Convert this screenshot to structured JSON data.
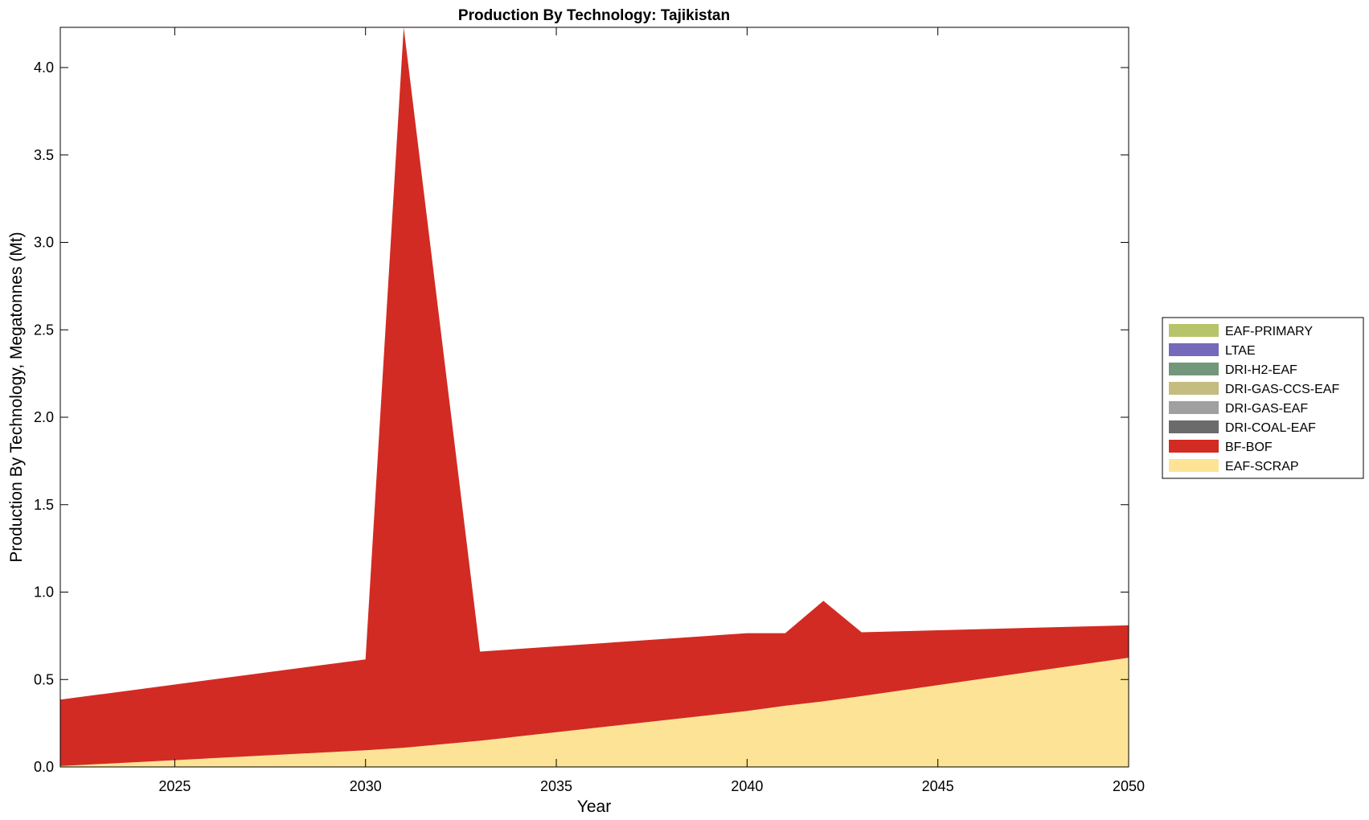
{
  "chart_data": {
    "type": "area",
    "stacked": true,
    "title": "Production By Technology: Tajikistan",
    "xlabel": "Year",
    "ylabel": "Production By Technology, Megatonnes (Mt)",
    "xlim": [
      2022,
      2050
    ],
    "ylim": [
      0,
      4.23
    ],
    "xticks": [
      2025,
      2030,
      2035,
      2040,
      2045,
      2050
    ],
    "yticks": [
      "0.0",
      "0.5",
      "1.0",
      "1.5",
      "2.0",
      "2.5",
      "3.0",
      "3.5",
      "4.0"
    ],
    "grid": false,
    "legend_position": "right",
    "x": [
      2022,
      2030,
      2031,
      2033,
      2040,
      2041,
      2042,
      2043,
      2050
    ],
    "series": [
      {
        "name": "EAF-SCRAP",
        "color": "#fde395",
        "values": [
          0.005,
          0.095,
          0.11,
          0.15,
          0.32,
          0.35,
          0.375,
          0.405,
          0.625
        ]
      },
      {
        "name": "BF-BOF",
        "color": "#d22b23",
        "values": [
          0.38,
          0.52,
          4.12,
          0.51,
          0.445,
          0.415,
          0.575,
          0.365,
          0.185
        ]
      },
      {
        "name": "DRI-COAL-EAF",
        "color": "#6b6b6b",
        "values": [
          0,
          0,
          0,
          0,
          0,
          0,
          0,
          0,
          0
        ]
      },
      {
        "name": "DRI-GAS-EAF",
        "color": "#a0a0a0",
        "values": [
          0,
          0,
          0,
          0,
          0,
          0,
          0,
          0,
          0
        ]
      },
      {
        "name": "DRI-GAS-CCS-EAF",
        "color": "#c5bc7f",
        "values": [
          0,
          0,
          0,
          0,
          0,
          0,
          0,
          0,
          0
        ]
      },
      {
        "name": "DRI-H2-EAF",
        "color": "#72977a",
        "values": [
          0,
          0,
          0,
          0,
          0,
          0,
          0,
          0,
          0
        ]
      },
      {
        "name": "LTAE",
        "color": "#7469ba",
        "values": [
          0,
          0,
          0,
          0,
          0,
          0,
          0,
          0,
          0
        ]
      },
      {
        "name": "EAF-PRIMARY",
        "color": "#b7c46a",
        "values": [
          0,
          0,
          0,
          0,
          0,
          0,
          0,
          0,
          0
        ]
      }
    ],
    "legend_order": [
      "EAF-PRIMARY",
      "LTAE",
      "DRI-H2-EAF",
      "DRI-GAS-CCS-EAF",
      "DRI-GAS-EAF",
      "DRI-COAL-EAF",
      "BF-BOF",
      "EAF-SCRAP"
    ]
  }
}
